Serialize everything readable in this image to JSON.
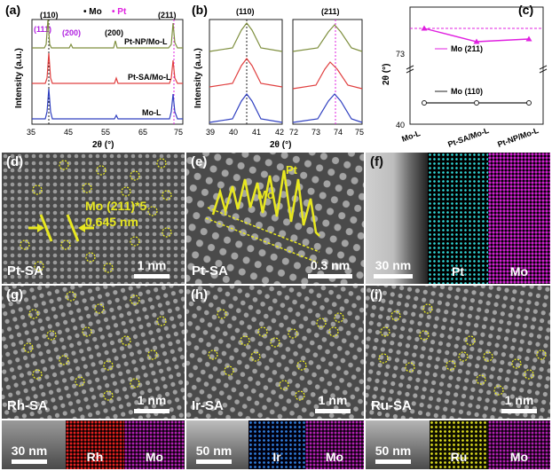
{
  "panel_a": {
    "label": "(a)",
    "legend_mo": "• Mo",
    "legend_pt": "• Pt",
    "peaks_mo": [
      "(110)",
      "(200)",
      "(211)"
    ],
    "peaks_pt": [
      "(111)",
      "(200)"
    ],
    "series": [
      "Pt-NP/Mo-L",
      "Pt-SA/Mo-L",
      "Mo-L"
    ],
    "ylabel": "Intensity (a.u.)",
    "xlabel": "2θ (°)",
    "xticks": [
      "35",
      "45",
      "55",
      "65",
      "75"
    ]
  },
  "panel_b": {
    "label": "(b)",
    "peak_left": "(110)",
    "peak_right": "(211)",
    "ylabel": "Intensity (a.u.)",
    "xlabel": "2θ (°)",
    "xticks_left": [
      "39",
      "40",
      "41",
      "42"
    ],
    "xticks_right": [
      "72",
      "73",
      "74",
      "75"
    ]
  },
  "chart_data": {
    "type": "line",
    "title": "(c)",
    "categories": [
      "Mo-L",
      "Pt-SA/Mo-L",
      "Pt-NP/Mo-L"
    ],
    "series": [
      {
        "name": "Mo (211)",
        "values": [
          73.8,
          73.55,
          73.6
        ],
        "color": "#e020e0"
      },
      {
        "name": "Mo (110)",
        "values": [
          40.6,
          40.6,
          40.6
        ],
        "color": "#222222"
      }
    ],
    "reference_line": 73.8,
    "yticks": [
      "40",
      "73"
    ],
    "ylabel": "2θ (°)",
    "xlabel": ""
  },
  "panel_d": {
    "label": "(d)",
    "sample": "Pt-SA",
    "annot": "Mo (211)*5",
    "dist": "0.645 nm",
    "scale": "1 nm"
  },
  "panel_e": {
    "label": "(e)",
    "sample": "Pt-SA",
    "mo": "Mo",
    "pt": "Pt",
    "scale": "0.3 nm"
  },
  "panel_f": {
    "label": "(f)",
    "scale": "30 nm",
    "el1": "Pt",
    "el2": "Mo"
  },
  "panel_g": {
    "label": "(g)",
    "sample": "Rh-SA",
    "scale": "1 nm",
    "strip_scale": "30 nm",
    "el1": "Rh",
    "el2": "Mo"
  },
  "panel_h": {
    "label": "(h)",
    "sample": "Ir-SA",
    "scale": "1 nm",
    "strip_scale": "50 nm",
    "el1": "Ir",
    "el2": "Mo"
  },
  "panel_i": {
    "label": "(i)",
    "sample": "Ru-SA",
    "scale": "1 nm",
    "strip_scale": "50 nm",
    "el1": "Ru",
    "el2": "Mo"
  },
  "colors": {
    "mo": "#222222",
    "pt": "#e020e0",
    "np": "#7f8f3f",
    "sa": "#e04040",
    "l": "#3040c0",
    "circle": "#e8e820"
  }
}
